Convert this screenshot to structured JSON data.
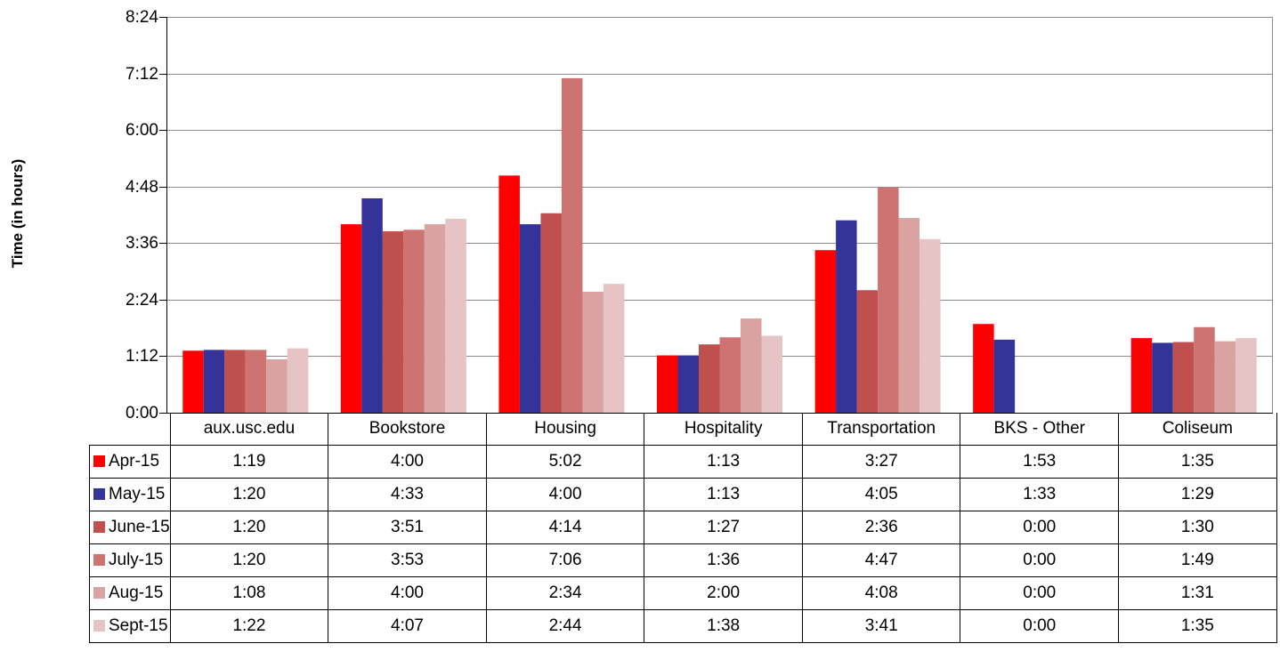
{
  "chart_data": {
    "type": "bar",
    "ylabel": "Time (in hours)",
    "ylim": [
      "0:00",
      "8:24"
    ],
    "y_ticks": [
      "0:00",
      "1:12",
      "2:24",
      "3:36",
      "4:48",
      "6:00",
      "7:12",
      "8:24"
    ],
    "grid": true,
    "legend": "data-table",
    "categories": [
      "aux.usc.edu",
      "Bookstore",
      "Housing",
      "Hospitality",
      "Transportation",
      "BKS - Other",
      "Coliseum"
    ],
    "series": [
      {
        "name": "Apr-15",
        "color": "#ff0000",
        "values": [
          "1:19",
          "4:00",
          "5:02",
          "1:13",
          "3:27",
          "1:53",
          "1:35"
        ]
      },
      {
        "name": "May-15",
        "color": "#333399",
        "values": [
          "1:20",
          "4:33",
          "4:00",
          "1:13",
          "4:05",
          "1:33",
          "1:29"
        ]
      },
      {
        "name": "June-15",
        "color": "#c0504d",
        "values": [
          "1:20",
          "3:51",
          "4:14",
          "1:27",
          "2:36",
          "0:00",
          "1:30"
        ]
      },
      {
        "name": "July-15",
        "color": "#cd7371",
        "values": [
          "1:20",
          "3:53",
          "7:06",
          "1:36",
          "4:47",
          "0:00",
          "1:49"
        ]
      },
      {
        "name": "Aug-15",
        "color": "#d9a3a2",
        "values": [
          "1:08",
          "4:00",
          "2:34",
          "2:00",
          "4:08",
          "0:00",
          "1:31"
        ]
      },
      {
        "name": "Sept-15",
        "color": "#e6c3c4",
        "values": [
          "1:22",
          "4:07",
          "2:44",
          "1:38",
          "3:41",
          "0:00",
          "1:35"
        ]
      }
    ]
  }
}
